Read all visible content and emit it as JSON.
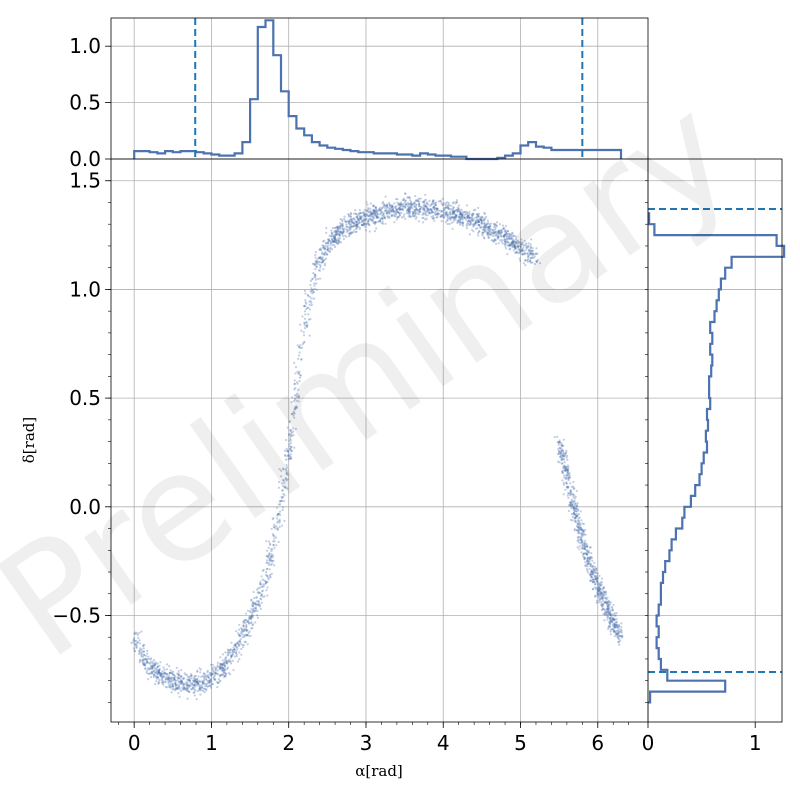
{
  "watermark": "Preliminary",
  "colors": {
    "scatter": "#4c72b0",
    "hist": "#4c72b0",
    "marker_line": "#1f77b4",
    "grid": "#b0b0b0"
  },
  "chart_data": [
    {
      "id": "scatter",
      "type": "scatter",
      "xlabel": "α[rad]",
      "ylabel": "δ[rad]",
      "xlim": [
        -0.3,
        6.65
      ],
      "ylim": [
        -0.99,
        1.6
      ],
      "xticks": [
        0,
        1,
        2,
        3,
        4,
        5,
        6
      ],
      "xtick_labels": [
        "0",
        "1",
        "2",
        "3",
        "4",
        "5",
        "6"
      ],
      "yticks": [
        -0.5,
        0.0,
        0.5,
        1.0,
        1.5
      ],
      "ytick_labels": [
        "−0.5",
        "0.0",
        "0.5",
        "1.0",
        "1.5"
      ],
      "grid": true,
      "series": [
        {
          "x": [
            0.0,
            0.1,
            0.2,
            0.3,
            0.5,
            0.7,
            0.9,
            1.1,
            1.3,
            1.5,
            1.7,
            1.85,
            1.95,
            2.05,
            2.15,
            2.25,
            2.35,
            2.5,
            2.7,
            3.0,
            3.3,
            3.6,
            3.9,
            4.2,
            4.5,
            4.8,
            5.0,
            5.2
          ],
          "y": [
            -0.6,
            -0.68,
            -0.73,
            -0.77,
            -0.8,
            -0.82,
            -0.81,
            -0.76,
            -0.66,
            -0.52,
            -0.34,
            -0.1,
            0.12,
            0.38,
            0.7,
            0.95,
            1.1,
            1.2,
            1.28,
            1.33,
            1.36,
            1.38,
            1.37,
            1.35,
            1.3,
            1.24,
            1.19,
            1.14
          ]
        },
        {
          "x": [
            5.5,
            5.6,
            5.7,
            5.8,
            5.9,
            6.0,
            6.1,
            6.2,
            6.3
          ],
          "y": [
            0.3,
            0.15,
            -0.02,
            -0.15,
            -0.27,
            -0.37,
            -0.45,
            -0.53,
            -0.6
          ]
        }
      ]
    },
    {
      "id": "hist-alpha",
      "type": "histogram",
      "orientation": "vertical",
      "ylim": [
        0,
        1.25
      ],
      "yticks": [
        0.0,
        0.5,
        1.0
      ],
      "ytick_labels": [
        "0.0",
        "0.5",
        "1.0"
      ],
      "bin_width": 0.1,
      "bin_start": 0.0,
      "values": [
        0.07,
        0.07,
        0.06,
        0.05,
        0.07,
        0.06,
        0.07,
        0.07,
        0.06,
        0.05,
        0.04,
        0.03,
        0.03,
        0.05,
        0.15,
        0.53,
        1.17,
        1.23,
        0.92,
        0.6,
        0.38,
        0.27,
        0.21,
        0.15,
        0.12,
        0.1,
        0.09,
        0.08,
        0.07,
        0.06,
        0.06,
        0.05,
        0.05,
        0.05,
        0.04,
        0.04,
        0.03,
        0.05,
        0.04,
        0.03,
        0.03,
        0.02,
        0.02,
        0.0,
        0.0,
        0.0,
        0.0,
        0.01,
        0.03,
        0.05,
        0.12,
        0.15,
        0.11,
        0.1,
        0.08,
        0.08,
        0.08,
        0.08,
        0.08,
        0.08,
        0.08,
        0.08,
        0.08
      ],
      "markers": [
        0.79,
        5.8
      ]
    },
    {
      "id": "hist-delta",
      "type": "histogram",
      "orientation": "horizontal",
      "xlim": [
        0,
        1.25
      ],
      "xticks": [
        0,
        1
      ],
      "xtick_labels": [
        "0",
        "1"
      ],
      "bin_width": 0.05,
      "bin_start": -0.9,
      "values": [
        0.02,
        0.72,
        0.18,
        0.12,
        0.1,
        0.08,
        0.1,
        0.08,
        0.1,
        0.12,
        0.12,
        0.14,
        0.16,
        0.2,
        0.22,
        0.26,
        0.32,
        0.34,
        0.4,
        0.44,
        0.48,
        0.5,
        0.52,
        0.55,
        0.54,
        0.56,
        0.55,
        0.58,
        0.57,
        0.57,
        0.59,
        0.6,
        0.58,
        0.6,
        0.58,
        0.62,
        0.64,
        0.66,
        0.68,
        0.72,
        0.78,
        1.27,
        1.2,
        0.06,
        0.01
      ],
      "markers": [
        -0.76,
        1.37
      ]
    }
  ]
}
